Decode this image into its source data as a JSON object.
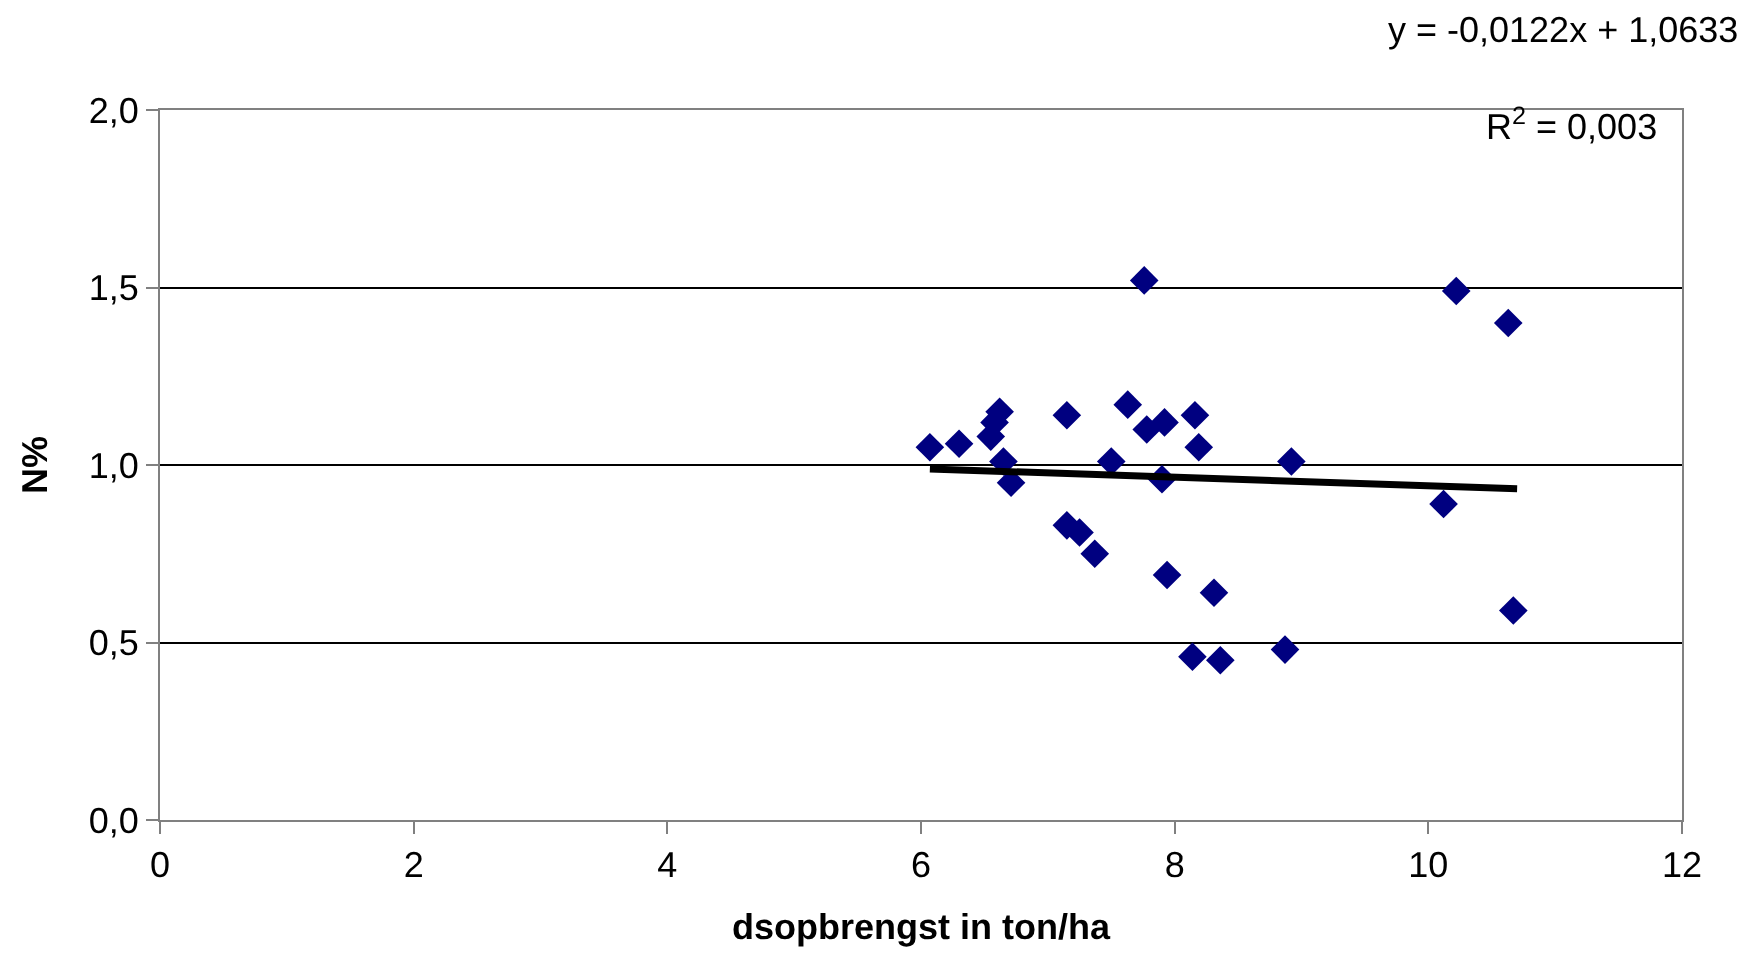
{
  "chart_data": {
    "type": "scatter",
    "xlabel": "dsopbrengst in ton/ha",
    "ylabel": "N%",
    "xlim": [
      0,
      12
    ],
    "xticks": [
      0,
      2,
      4,
      6,
      8,
      10,
      12
    ],
    "ylim": [
      0,
      2
    ],
    "yticks": [
      {
        "value": 0,
        "label": "0,0"
      },
      {
        "value": 0.5,
        "label": "0,5"
      },
      {
        "value": 1,
        "label": "1,0"
      },
      {
        "value": 1.5,
        "label": "1,5"
      },
      {
        "value": 2,
        "label": "2,0"
      }
    ],
    "grid": "y",
    "marker": "diamond",
    "annotations": [
      "y = -0,0122x + 1,0633",
      "R$^{2}$ = 0,003"
    ],
    "series": [
      {
        "color": "#000080",
        "x": [
          6.07,
          6.3,
          6.55,
          6.58,
          6.62,
          6.65,
          6.71,
          7.15,
          7.15,
          7.25,
          7.37,
          7.5,
          7.63,
          7.76,
          7.78,
          7.92,
          7.9,
          7.94,
          8.16,
          8.19,
          8.14,
          8.31,
          8.36,
          8.87,
          8.92,
          10.12,
          10.22,
          10.63,
          10.67
        ],
        "values": [
          1.05,
          1.06,
          1.08,
          1.12,
          1.15,
          1.01,
          0.95,
          1.14,
          0.83,
          0.81,
          0.75,
          1.01,
          1.17,
          1.52,
          1.1,
          1.12,
          0.96,
          0.69,
          1.14,
          1.05,
          0.46,
          0.64,
          0.45,
          0.48,
          1.01,
          0.89,
          1.49,
          1.4,
          0.59
        ]
      },
      {
        "type": "line",
        "color": "#000000",
        "marker": "none",
        "x": [
          6.07,
          10.7
        ],
        "values": [
          0.989,
          0.933
        ]
      }
    ]
  }
}
